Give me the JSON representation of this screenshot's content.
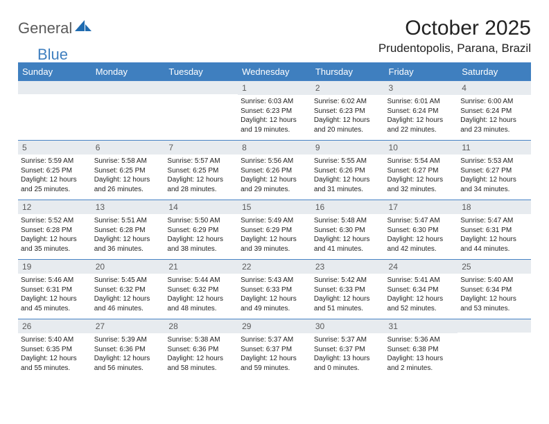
{
  "logo": {
    "word1": "General",
    "word2": "Blue",
    "shape_color": "#1f6bb0"
  },
  "title": "October 2025",
  "location": "Prudentopolis, Parana, Brazil",
  "colors": {
    "header_bg": "#3f7fbf",
    "header_text": "#ffffff",
    "daynum_bg": "#e7ebef",
    "daynum_text": "#5a5a5a",
    "border": "#4682c4",
    "body_text": "#222222",
    "page_bg": "#ffffff"
  },
  "day_headers": [
    "Sunday",
    "Monday",
    "Tuesday",
    "Wednesday",
    "Thursday",
    "Friday",
    "Saturday"
  ],
  "weeks": [
    [
      null,
      null,
      null,
      {
        "n": "1",
        "sunrise": "6:03 AM",
        "sunset": "6:23 PM",
        "dh": "12",
        "dm": "19"
      },
      {
        "n": "2",
        "sunrise": "6:02 AM",
        "sunset": "6:23 PM",
        "dh": "12",
        "dm": "20"
      },
      {
        "n": "3",
        "sunrise": "6:01 AM",
        "sunset": "6:24 PM",
        "dh": "12",
        "dm": "22"
      },
      {
        "n": "4",
        "sunrise": "6:00 AM",
        "sunset": "6:24 PM",
        "dh": "12",
        "dm": "23"
      }
    ],
    [
      {
        "n": "5",
        "sunrise": "5:59 AM",
        "sunset": "6:25 PM",
        "dh": "12",
        "dm": "25"
      },
      {
        "n": "6",
        "sunrise": "5:58 AM",
        "sunset": "6:25 PM",
        "dh": "12",
        "dm": "26"
      },
      {
        "n": "7",
        "sunrise": "5:57 AM",
        "sunset": "6:25 PM",
        "dh": "12",
        "dm": "28"
      },
      {
        "n": "8",
        "sunrise": "5:56 AM",
        "sunset": "6:26 PM",
        "dh": "12",
        "dm": "29"
      },
      {
        "n": "9",
        "sunrise": "5:55 AM",
        "sunset": "6:26 PM",
        "dh": "12",
        "dm": "31"
      },
      {
        "n": "10",
        "sunrise": "5:54 AM",
        "sunset": "6:27 PM",
        "dh": "12",
        "dm": "32"
      },
      {
        "n": "11",
        "sunrise": "5:53 AM",
        "sunset": "6:27 PM",
        "dh": "12",
        "dm": "34"
      }
    ],
    [
      {
        "n": "12",
        "sunrise": "5:52 AM",
        "sunset": "6:28 PM",
        "dh": "12",
        "dm": "35"
      },
      {
        "n": "13",
        "sunrise": "5:51 AM",
        "sunset": "6:28 PM",
        "dh": "12",
        "dm": "36"
      },
      {
        "n": "14",
        "sunrise": "5:50 AM",
        "sunset": "6:29 PM",
        "dh": "12",
        "dm": "38"
      },
      {
        "n": "15",
        "sunrise": "5:49 AM",
        "sunset": "6:29 PM",
        "dh": "12",
        "dm": "39"
      },
      {
        "n": "16",
        "sunrise": "5:48 AM",
        "sunset": "6:30 PM",
        "dh": "12",
        "dm": "41"
      },
      {
        "n": "17",
        "sunrise": "5:47 AM",
        "sunset": "6:30 PM",
        "dh": "12",
        "dm": "42"
      },
      {
        "n": "18",
        "sunrise": "5:47 AM",
        "sunset": "6:31 PM",
        "dh": "12",
        "dm": "44"
      }
    ],
    [
      {
        "n": "19",
        "sunrise": "5:46 AM",
        "sunset": "6:31 PM",
        "dh": "12",
        "dm": "45"
      },
      {
        "n": "20",
        "sunrise": "5:45 AM",
        "sunset": "6:32 PM",
        "dh": "12",
        "dm": "46"
      },
      {
        "n": "21",
        "sunrise": "5:44 AM",
        "sunset": "6:32 PM",
        "dh": "12",
        "dm": "48"
      },
      {
        "n": "22",
        "sunrise": "5:43 AM",
        "sunset": "6:33 PM",
        "dh": "12",
        "dm": "49"
      },
      {
        "n": "23",
        "sunrise": "5:42 AM",
        "sunset": "6:33 PM",
        "dh": "12",
        "dm": "51"
      },
      {
        "n": "24",
        "sunrise": "5:41 AM",
        "sunset": "6:34 PM",
        "dh": "12",
        "dm": "52"
      },
      {
        "n": "25",
        "sunrise": "5:40 AM",
        "sunset": "6:34 PM",
        "dh": "12",
        "dm": "53"
      }
    ],
    [
      {
        "n": "26",
        "sunrise": "5:40 AM",
        "sunset": "6:35 PM",
        "dh": "12",
        "dm": "55"
      },
      {
        "n": "27",
        "sunrise": "5:39 AM",
        "sunset": "6:36 PM",
        "dh": "12",
        "dm": "56"
      },
      {
        "n": "28",
        "sunrise": "5:38 AM",
        "sunset": "6:36 PM",
        "dh": "12",
        "dm": "58"
      },
      {
        "n": "29",
        "sunrise": "5:37 AM",
        "sunset": "6:37 PM",
        "dh": "12",
        "dm": "59"
      },
      {
        "n": "30",
        "sunrise": "5:37 AM",
        "sunset": "6:37 PM",
        "dh": "13",
        "dm": "0"
      },
      {
        "n": "31",
        "sunrise": "5:36 AM",
        "sunset": "6:38 PM",
        "dh": "13",
        "dm": "2"
      },
      null
    ]
  ]
}
